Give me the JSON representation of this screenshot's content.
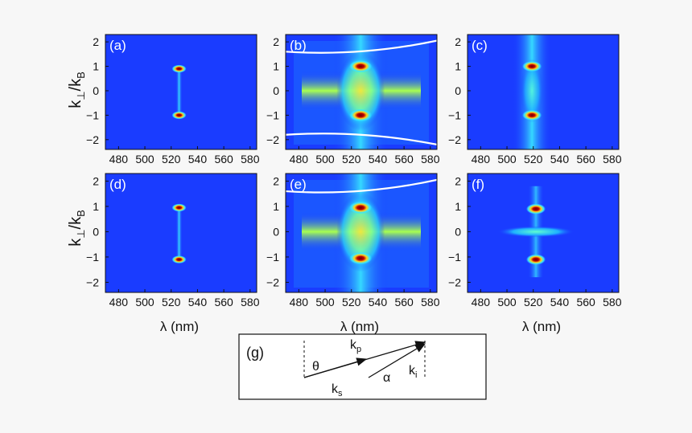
{
  "chart_data": {
    "type": "heatmap",
    "xlabel": "λ (nm)",
    "ylabel_main": "k",
    "ylabel_sub1": "⊥",
    "ylabel_mid": "/k",
    "ylabel_sub2": "B",
    "xticks": [
      "480",
      "500",
      "520",
      "540",
      "560",
      "580"
    ],
    "yticks": [
      "2",
      "1",
      "0",
      "−1",
      "−2"
    ],
    "xlim": [
      470,
      585
    ],
    "ylim": [
      -2.4,
      2.3
    ],
    "colors": {
      "low": "#1a3cff",
      "mid": "#3fe0ff",
      "high": "#ffe23a",
      "peak": "#7a0000"
    },
    "panels": [
      {
        "label": "(a)",
        "center_nm": 526,
        "spots": [
          [
            526,
            0.9,
            "peak"
          ],
          [
            526,
            -1.0,
            "peak"
          ]
        ],
        "streak": true
      },
      {
        "label": "(b)",
        "center_nm": 527,
        "spots": [
          [
            527,
            1.0,
            "peak"
          ],
          [
            527,
            -1.0,
            "peak"
          ]
        ],
        "curves": true
      },
      {
        "label": "(c)",
        "center_nm": 519,
        "spots": [
          [
            519,
            1.0,
            "peak"
          ],
          [
            519,
            -1.0,
            "peak"
          ]
        ]
      },
      {
        "label": "(d)",
        "center_nm": 526,
        "spots": [
          [
            526,
            0.95,
            "peak"
          ],
          [
            526,
            -1.1,
            "peak"
          ]
        ],
        "streak": true
      },
      {
        "label": "(e)",
        "center_nm": 527,
        "spots": [
          [
            527,
            0.95,
            "peak"
          ],
          [
            527,
            -1.05,
            "peak"
          ]
        ],
        "curves": true
      },
      {
        "label": "(f)",
        "center_nm": 522,
        "spots": [
          [
            522,
            0.9,
            "peak"
          ],
          [
            522,
            -1.1,
            "peak"
          ]
        ]
      }
    ]
  },
  "inset": {
    "label": "(g)",
    "theta": "θ",
    "alpha": "α",
    "kp": "k",
    "kp_sub": "p",
    "ks": "k",
    "ks_sub": "s",
    "ki": "k",
    "ki_sub": "i"
  }
}
